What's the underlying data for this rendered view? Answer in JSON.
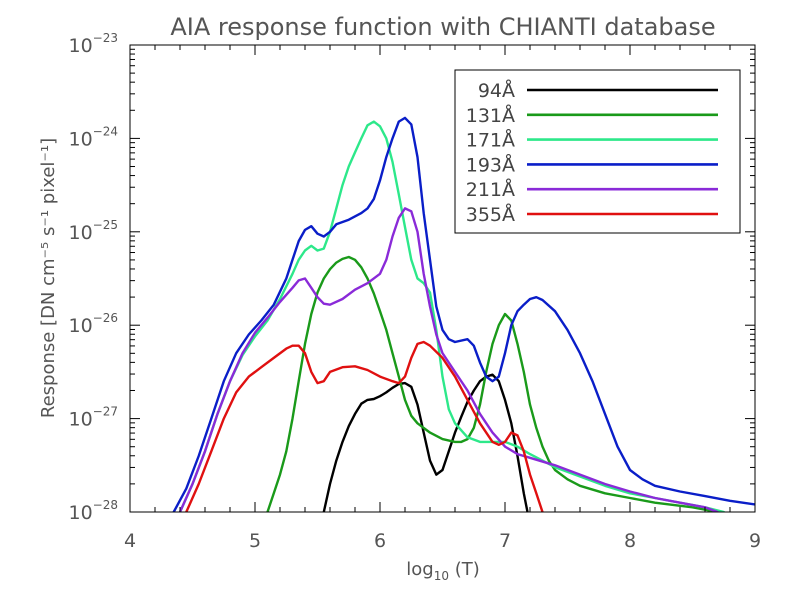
{
  "chart_data": {
    "type": "line",
    "title": "AIA response function with CHIANTI database",
    "xlabel": "log₁₀ (T)",
    "xlabel_parts": {
      "base": "log",
      "sub": "10",
      "rest": " (T)"
    },
    "ylabel": "Response [DN cm⁻⁵ s⁻¹ pixel⁻¹]",
    "xlim": [
      4,
      9
    ],
    "ylim": [
      1e-28,
      1e-23
    ],
    "yscale": "log",
    "x_ticks": [
      "4",
      "5",
      "6",
      "7",
      "8",
      "9"
    ],
    "y_ticks": [
      {
        "base": "10",
        "exp": "−28"
      },
      {
        "base": "10",
        "exp": "−27"
      },
      {
        "base": "10",
        "exp": "−26"
      },
      {
        "base": "10",
        "exp": "−25"
      },
      {
        "base": "10",
        "exp": "−24"
      },
      {
        "base": "10",
        "exp": "−23"
      }
    ],
    "grid": false,
    "legend_position": "top-right",
    "series": [
      {
        "name": "94Å",
        "color": "#000000",
        "points": [
          [
            5.55,
            -28.0
          ],
          [
            5.6,
            -27.7
          ],
          [
            5.65,
            -27.45
          ],
          [
            5.7,
            -27.25
          ],
          [
            5.75,
            -27.08
          ],
          [
            5.8,
            -26.95
          ],
          [
            5.85,
            -26.84
          ],
          [
            5.9,
            -26.8
          ],
          [
            5.95,
            -26.79
          ],
          [
            6.0,
            -26.76
          ],
          [
            6.05,
            -26.72
          ],
          [
            6.1,
            -26.67
          ],
          [
            6.15,
            -26.63
          ],
          [
            6.2,
            -26.62
          ],
          [
            6.25,
            -26.66
          ],
          [
            6.3,
            -26.85
          ],
          [
            6.35,
            -27.15
          ],
          [
            6.4,
            -27.45
          ],
          [
            6.45,
            -27.6
          ],
          [
            6.5,
            -27.55
          ],
          [
            6.55,
            -27.35
          ],
          [
            6.6,
            -27.15
          ],
          [
            6.65,
            -26.98
          ],
          [
            6.7,
            -26.82
          ],
          [
            6.75,
            -26.7
          ],
          [
            6.8,
            -26.6
          ],
          [
            6.85,
            -26.55
          ],
          [
            6.9,
            -26.53
          ],
          [
            6.95,
            -26.6
          ],
          [
            7.0,
            -26.8
          ],
          [
            7.05,
            -27.05
          ],
          [
            7.1,
            -27.4
          ],
          [
            7.15,
            -27.8
          ],
          [
            7.18,
            -28.0
          ]
        ]
      },
      {
        "name": "131Å",
        "color": "#1a9a1a",
        "points": [
          [
            5.1,
            -28.0
          ],
          [
            5.15,
            -27.8
          ],
          [
            5.2,
            -27.6
          ],
          [
            5.25,
            -27.35
          ],
          [
            5.3,
            -27.0
          ],
          [
            5.35,
            -26.6
          ],
          [
            5.4,
            -26.2
          ],
          [
            5.45,
            -25.88
          ],
          [
            5.5,
            -25.65
          ],
          [
            5.55,
            -25.5
          ],
          [
            5.6,
            -25.4
          ],
          [
            5.65,
            -25.33
          ],
          [
            5.7,
            -25.29
          ],
          [
            5.75,
            -25.27
          ],
          [
            5.8,
            -25.3
          ],
          [
            5.85,
            -25.38
          ],
          [
            5.9,
            -25.5
          ],
          [
            5.95,
            -25.66
          ],
          [
            6.0,
            -25.85
          ],
          [
            6.05,
            -26.05
          ],
          [
            6.1,
            -26.3
          ],
          [
            6.15,
            -26.55
          ],
          [
            6.2,
            -26.8
          ],
          [
            6.25,
            -26.97
          ],
          [
            6.3,
            -27.05
          ],
          [
            6.4,
            -27.15
          ],
          [
            6.5,
            -27.22
          ],
          [
            6.6,
            -27.25
          ],
          [
            6.65,
            -27.25
          ],
          [
            6.7,
            -27.22
          ],
          [
            6.75,
            -27.1
          ],
          [
            6.8,
            -26.85
          ],
          [
            6.85,
            -26.5
          ],
          [
            6.9,
            -26.2
          ],
          [
            6.95,
            -26.0
          ],
          [
            7.0,
            -25.88
          ],
          [
            7.05,
            -25.95
          ],
          [
            7.1,
            -26.2
          ],
          [
            7.15,
            -26.5
          ],
          [
            7.2,
            -26.85
          ],
          [
            7.25,
            -27.1
          ],
          [
            7.3,
            -27.3
          ],
          [
            7.35,
            -27.45
          ],
          [
            7.4,
            -27.55
          ],
          [
            7.5,
            -27.65
          ],
          [
            7.6,
            -27.72
          ],
          [
            7.8,
            -27.8
          ],
          [
            8.0,
            -27.85
          ],
          [
            8.2,
            -27.9
          ],
          [
            8.5,
            -27.95
          ],
          [
            8.7,
            -28.0
          ]
        ]
      },
      {
        "name": "171Å",
        "color": "#2de88a",
        "points": [
          [
            4.4,
            -28.0
          ],
          [
            4.5,
            -27.7
          ],
          [
            4.6,
            -27.35
          ],
          [
            4.7,
            -26.95
          ],
          [
            4.8,
            -26.6
          ],
          [
            4.9,
            -26.32
          ],
          [
            5.0,
            -26.12
          ],
          [
            5.1,
            -25.95
          ],
          [
            5.2,
            -25.72
          ],
          [
            5.3,
            -25.45
          ],
          [
            5.35,
            -25.3
          ],
          [
            5.4,
            -25.2
          ],
          [
            5.45,
            -25.15
          ],
          [
            5.5,
            -25.2
          ],
          [
            5.55,
            -25.18
          ],
          [
            5.6,
            -25.0
          ],
          [
            5.65,
            -24.75
          ],
          [
            5.7,
            -24.5
          ],
          [
            5.75,
            -24.3
          ],
          [
            5.8,
            -24.15
          ],
          [
            5.85,
            -24.0
          ],
          [
            5.9,
            -23.86
          ],
          [
            5.95,
            -23.82
          ],
          [
            6.0,
            -23.87
          ],
          [
            6.05,
            -24.0
          ],
          [
            6.1,
            -24.25
          ],
          [
            6.15,
            -24.6
          ],
          [
            6.2,
            -24.95
          ],
          [
            6.25,
            -25.3
          ],
          [
            6.3,
            -25.5
          ],
          [
            6.35,
            -25.55
          ],
          [
            6.4,
            -25.65
          ],
          [
            6.45,
            -26.05
          ],
          [
            6.5,
            -26.55
          ],
          [
            6.55,
            -26.9
          ],
          [
            6.6,
            -27.05
          ],
          [
            6.7,
            -27.2
          ],
          [
            6.8,
            -27.25
          ],
          [
            6.9,
            -27.25
          ],
          [
            7.0,
            -27.25
          ],
          [
            7.1,
            -27.3
          ],
          [
            7.2,
            -27.38
          ],
          [
            7.3,
            -27.45
          ],
          [
            7.4,
            -27.52
          ],
          [
            7.6,
            -27.62
          ],
          [
            7.8,
            -27.72
          ],
          [
            8.0,
            -27.8
          ],
          [
            8.2,
            -27.85
          ],
          [
            8.4,
            -27.9
          ],
          [
            8.6,
            -27.95
          ],
          [
            8.75,
            -28.0
          ]
        ]
      },
      {
        "name": "193Å",
        "color": "#0a1ec8",
        "points": [
          [
            4.35,
            -28.0
          ],
          [
            4.45,
            -27.75
          ],
          [
            4.55,
            -27.4
          ],
          [
            4.65,
            -27.0
          ],
          [
            4.75,
            -26.6
          ],
          [
            4.85,
            -26.3
          ],
          [
            4.95,
            -26.1
          ],
          [
            5.05,
            -25.95
          ],
          [
            5.15,
            -25.78
          ],
          [
            5.25,
            -25.5
          ],
          [
            5.3,
            -25.3
          ],
          [
            5.35,
            -25.1
          ],
          [
            5.4,
            -24.98
          ],
          [
            5.45,
            -24.94
          ],
          [
            5.5,
            -25.02
          ],
          [
            5.55,
            -25.05
          ],
          [
            5.6,
            -25.0
          ],
          [
            5.65,
            -24.92
          ],
          [
            5.75,
            -24.87
          ],
          [
            5.85,
            -24.8
          ],
          [
            5.9,
            -24.75
          ],
          [
            5.95,
            -24.65
          ],
          [
            6.0,
            -24.45
          ],
          [
            6.05,
            -24.2
          ],
          [
            6.1,
            -24.0
          ],
          [
            6.15,
            -23.82
          ],
          [
            6.2,
            -23.78
          ],
          [
            6.25,
            -23.85
          ],
          [
            6.3,
            -24.2
          ],
          [
            6.35,
            -24.8
          ],
          [
            6.4,
            -25.3
          ],
          [
            6.45,
            -25.8
          ],
          [
            6.5,
            -26.05
          ],
          [
            6.55,
            -26.15
          ],
          [
            6.6,
            -26.18
          ],
          [
            6.7,
            -26.15
          ],
          [
            6.75,
            -26.22
          ],
          [
            6.8,
            -26.4
          ],
          [
            6.85,
            -26.55
          ],
          [
            6.9,
            -26.6
          ],
          [
            6.95,
            -26.55
          ],
          [
            7.0,
            -26.3
          ],
          [
            7.05,
            -26.0
          ],
          [
            7.1,
            -25.85
          ],
          [
            7.15,
            -25.78
          ],
          [
            7.2,
            -25.72
          ],
          [
            7.25,
            -25.7
          ],
          [
            7.3,
            -25.73
          ],
          [
            7.4,
            -25.85
          ],
          [
            7.5,
            -26.05
          ],
          [
            7.6,
            -26.3
          ],
          [
            7.7,
            -26.6
          ],
          [
            7.8,
            -26.95
          ],
          [
            7.9,
            -27.3
          ],
          [
            8.0,
            -27.55
          ],
          [
            8.1,
            -27.65
          ],
          [
            8.2,
            -27.72
          ],
          [
            8.4,
            -27.78
          ],
          [
            8.6,
            -27.83
          ],
          [
            8.8,
            -27.88
          ],
          [
            9.0,
            -27.92
          ]
        ]
      },
      {
        "name": "211Å",
        "color": "#8a2ad8",
        "points": [
          [
            4.4,
            -28.0
          ],
          [
            4.5,
            -27.7
          ],
          [
            4.6,
            -27.35
          ],
          [
            4.7,
            -26.95
          ],
          [
            4.8,
            -26.6
          ],
          [
            4.9,
            -26.3
          ],
          [
            5.0,
            -26.08
          ],
          [
            5.1,
            -25.92
          ],
          [
            5.2,
            -25.75
          ],
          [
            5.3,
            -25.6
          ],
          [
            5.35,
            -25.52
          ],
          [
            5.4,
            -25.5
          ],
          [
            5.45,
            -25.6
          ],
          [
            5.5,
            -25.7
          ],
          [
            5.55,
            -25.77
          ],
          [
            5.6,
            -25.78
          ],
          [
            5.7,
            -25.72
          ],
          [
            5.8,
            -25.62
          ],
          [
            5.9,
            -25.55
          ],
          [
            6.0,
            -25.45
          ],
          [
            6.05,
            -25.3
          ],
          [
            6.1,
            -25.05
          ],
          [
            6.15,
            -24.85
          ],
          [
            6.2,
            -24.75
          ],
          [
            6.25,
            -24.78
          ],
          [
            6.3,
            -25.0
          ],
          [
            6.35,
            -25.45
          ],
          [
            6.4,
            -25.8
          ],
          [
            6.45,
            -26.1
          ],
          [
            6.5,
            -26.3
          ],
          [
            6.6,
            -26.5
          ],
          [
            6.7,
            -26.7
          ],
          [
            6.8,
            -26.95
          ],
          [
            6.9,
            -27.15
          ],
          [
            7.0,
            -27.3
          ],
          [
            7.1,
            -27.38
          ],
          [
            7.2,
            -27.42
          ],
          [
            7.4,
            -27.5
          ],
          [
            7.6,
            -27.6
          ],
          [
            7.8,
            -27.7
          ],
          [
            8.0,
            -27.78
          ],
          [
            8.2,
            -27.85
          ],
          [
            8.4,
            -27.9
          ],
          [
            8.6,
            -27.95
          ],
          [
            8.7,
            -28.0
          ]
        ]
      },
      {
        "name": "355Å",
        "color": "#e01010",
        "points": [
          [
            4.45,
            -28.0
          ],
          [
            4.55,
            -27.7
          ],
          [
            4.65,
            -27.35
          ],
          [
            4.75,
            -27.0
          ],
          [
            4.85,
            -26.72
          ],
          [
            4.95,
            -26.55
          ],
          [
            5.05,
            -26.45
          ],
          [
            5.15,
            -26.35
          ],
          [
            5.25,
            -26.25
          ],
          [
            5.3,
            -26.22
          ],
          [
            5.35,
            -26.22
          ],
          [
            5.4,
            -26.3
          ],
          [
            5.45,
            -26.5
          ],
          [
            5.5,
            -26.62
          ],
          [
            5.55,
            -26.6
          ],
          [
            5.6,
            -26.5
          ],
          [
            5.7,
            -26.45
          ],
          [
            5.8,
            -26.44
          ],
          [
            5.9,
            -26.48
          ],
          [
            6.0,
            -26.55
          ],
          [
            6.1,
            -26.6
          ],
          [
            6.15,
            -26.62
          ],
          [
            6.2,
            -26.55
          ],
          [
            6.25,
            -26.35
          ],
          [
            6.3,
            -26.2
          ],
          [
            6.35,
            -26.18
          ],
          [
            6.4,
            -26.22
          ],
          [
            6.5,
            -26.35
          ],
          [
            6.6,
            -26.55
          ],
          [
            6.7,
            -26.8
          ],
          [
            6.8,
            -27.05
          ],
          [
            6.9,
            -27.25
          ],
          [
            6.95,
            -27.28
          ],
          [
            7.0,
            -27.25
          ],
          [
            7.05,
            -27.15
          ],
          [
            7.1,
            -27.18
          ],
          [
            7.15,
            -27.35
          ],
          [
            7.2,
            -27.6
          ],
          [
            7.25,
            -27.8
          ],
          [
            7.3,
            -28.0
          ]
        ]
      }
    ]
  }
}
